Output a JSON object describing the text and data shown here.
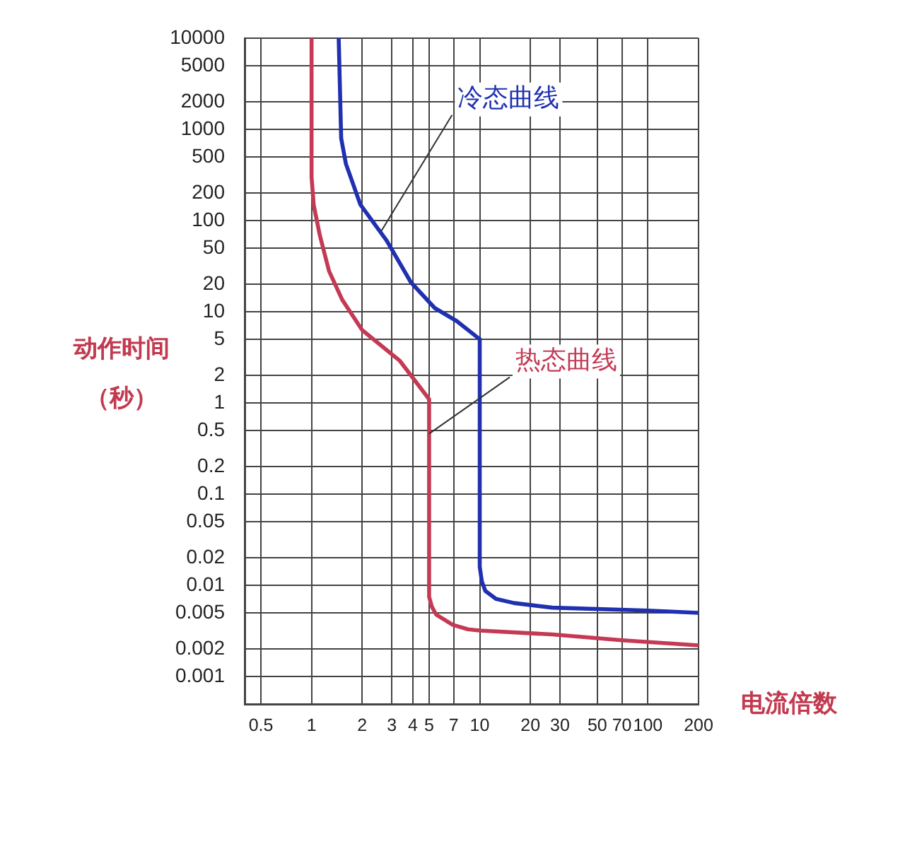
{
  "chart_data": {
    "type": "line",
    "xlabel": "电流倍数",
    "ylabel": "动作时间（秒）",
    "log": "xy",
    "grid": true,
    "xlim": [
      0.4,
      200
    ],
    "xticks": [
      0.5,
      1,
      2,
      3,
      4,
      5,
      7,
      10,
      20,
      30,
      50,
      70,
      100,
      200
    ],
    "ylim": [
      0.0005,
      10000
    ],
    "yticks": [
      0.001,
      0.002,
      0.005,
      0.01,
      0.02,
      0.05,
      0.1,
      0.2,
      0.5,
      1,
      2,
      5,
      10,
      20,
      50,
      100,
      200,
      500,
      1000,
      2000,
      5000,
      10000
    ],
    "series": [
      {
        "color": "#1f30b0",
        "x": [
          1.45,
          1.5,
          1.6,
          1.95,
          2.8,
          3.9,
          5.4,
          7.3,
          10,
          10,
          10.3,
          10.8,
          12.5,
          16,
          27,
          100,
          200
        ],
        "values": [
          10000,
          800,
          420,
          150,
          60,
          21,
          11,
          7.9,
          5,
          0.016,
          0.011,
          0.0087,
          0.0071,
          0.0064,
          0.0057,
          0.0053,
          0.005
        ]
      },
      {
        "color": "#c43a55",
        "x": [
          1,
          1,
          1.03,
          1.12,
          1.27,
          1.52,
          2,
          3.35,
          5,
          5,
          5.2,
          5.5,
          6.9,
          8.5,
          10,
          27,
          70,
          200
        ],
        "values": [
          10000,
          300,
          148,
          69,
          28,
          13.6,
          6.3,
          2.9,
          1.1,
          0.0075,
          0.0058,
          0.0048,
          0.0037,
          0.0033,
          0.0032,
          0.0029,
          0.0025,
          0.0022
        ]
      }
    ],
    "annotations": [
      {
        "text": "冷态曲线",
        "x": 2.6,
        "y": 77
      },
      {
        "text": "热态曲线",
        "x": 5,
        "y": 0.46
      }
    ]
  }
}
